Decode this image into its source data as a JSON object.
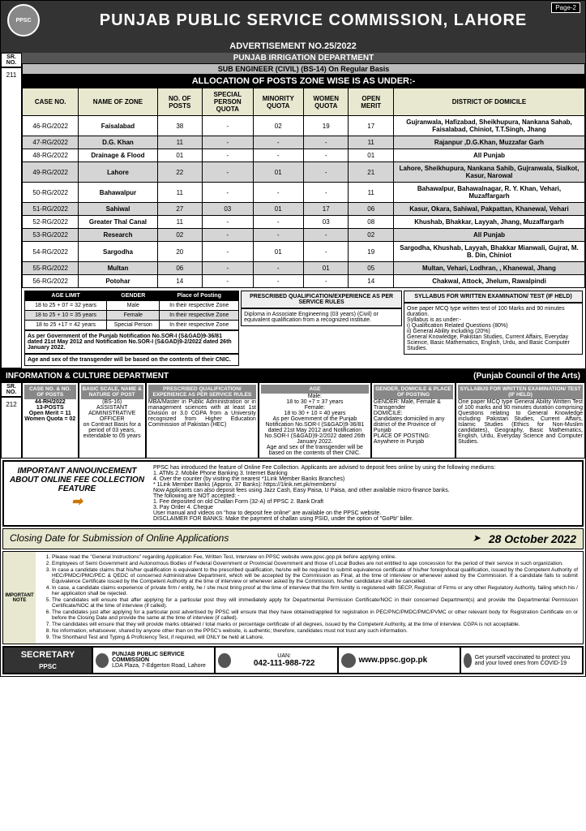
{
  "header": {
    "logo_text": "PPSC",
    "title": "PUNJAB PUBLIC SERVICE COMMISSION, LAHORE",
    "page_label": "Page-2"
  },
  "adv_no": "ADVERTISEMENT NO.25/2022",
  "dept1": "PUNJAB IRRIGATION DEPARTMENT",
  "sub1": "SUB ENGINEER (CIVIL) (BS-14) On Regular Basis",
  "alloc_title": "ALLOCATION OF POSTS ZONE WISE IS AS UNDER:-",
  "sr_label": "SR. NO.",
  "sr_211": "211",
  "cols": [
    "CASE NO.",
    "NAME OF ZONE",
    "NO. OF POSTS",
    "SPECIAL PERSON QUOTA",
    "MINORITY QUOTA",
    "WOMEN QUOTA",
    "OPEN MERIT",
    "DISTRICT OF DOMICILE"
  ],
  "rows": [
    {
      "alt": false,
      "c": [
        "46-RG/2022",
        "Faisalabad",
        "38",
        "-",
        "02",
        "19",
        "17",
        "Gujranwala, Hafizabad, Sheikhupura, Nankana Sahab, Faisalabad, Chiniot, T.T.Singh, Jhang"
      ]
    },
    {
      "alt": true,
      "c": [
        "47-RG/2022",
        "D.G. Khan",
        "11",
        "-",
        "-",
        "-",
        "11",
        "Rajanpur ,D.G.Khan, Muzzafar Garh"
      ]
    },
    {
      "alt": false,
      "c": [
        "48-RG/2022",
        "Drainage & Flood",
        "01",
        "-",
        "-",
        "-",
        "01",
        "All Punjab"
      ]
    },
    {
      "alt": true,
      "c": [
        "49-RG/2022",
        "Lahore",
        "22",
        "-",
        "01",
        "-",
        "21",
        "Lahore, Sheikhupura, Nankana Sahib, Gujranwala, Sialkot, Kasur, Narowal"
      ]
    },
    {
      "alt": false,
      "c": [
        "50-RG/2022",
        "Bahawalpur",
        "11",
        "-",
        "-",
        "-",
        "11",
        "Bahawalpur, Bahawalnagar, R. Y. Khan, Vehari, Muzaffargarh"
      ]
    },
    {
      "alt": true,
      "c": [
        "51-RG/2022",
        "Sahiwal",
        "27",
        "03",
        "01",
        "17",
        "06",
        "Kasur, Okara, Sahiwal, Pakpattan, Khanewal, Vehari"
      ]
    },
    {
      "alt": false,
      "c": [
        "52-RG/2022",
        "Greater Thal Canal",
        "11",
        "-",
        "-",
        "03",
        "08",
        "Khushab, Bhakkar, Layyah, Jhang, Muzaffargarh"
      ]
    },
    {
      "alt": true,
      "c": [
        "53-RG/2022",
        "Research",
        "02",
        "-",
        "-",
        "-",
        "02",
        "All Punjab"
      ]
    },
    {
      "alt": false,
      "c": [
        "54-RG/2022",
        "Sargodha",
        "20",
        "-",
        "01",
        "-",
        "19",
        "Sargodha, Khushab, Layyah, Bhakkar Mianwali, Gujrat, M. B. Din, Chiniot"
      ]
    },
    {
      "alt": true,
      "c": [
        "55-RG/2022",
        "Multan",
        "06",
        "-",
        "-",
        "01",
        "05",
        "Multan, Vehari, Lodhran, , Khanewal, Jhang"
      ]
    },
    {
      "alt": false,
      "c": [
        "56-RG/2022",
        "Potohar",
        "14",
        "-",
        "-",
        "-",
        "14",
        "Chakwal, Attock, Jhelum, Rawalpindi"
      ]
    }
  ],
  "age_limit_h": "AGE LIMIT",
  "gender_h": "GENDER",
  "place_h": "Place of Posting",
  "age_rows": [
    {
      "a": "18 to 25 + 07 = 32 years",
      "g": "Male",
      "p": "In their respective Zone"
    },
    {
      "a": "18 to 25 + 10 = 35 years",
      "g": "Female",
      "p": "In their respective Zone"
    },
    {
      "a": "18 to 25 +17 = 42 years",
      "g": "Special Person",
      "p": "In their respective Zone"
    }
  ],
  "age_note1": "As per Government of the Punjab Notification No.SOR-I (S&GAD)9-36/81 dated 21st May 2012 and Notification No.SOR-I (S&GAD)9-2/2022 dated 26th January 2022.",
  "age_note2": "Age and sex of the transgender will be based on the contents of their CNIC.",
  "qual_h": "PRESCRIBED QUALIFICATION/EXPERIENCE AS PER SERVICE RULES",
  "qual_text": "Diploma in Associate Engineering (03 years) (Civil) or equivalent qualification from a recognized institute.",
  "syllabus_h": "SYLLABUS FOR WRITTEN EXAMINATION/ TEST (IF HELD)",
  "syllabus_text": "One paper MCQ type written test of 100 Marks and 90 minutes duration.\nSyllabus is as under:-\ni) Qualification Related Questions (80%)\nii) General Ability including (20%)\nGeneral Knowledge, Pakistan Studies, Current Affairs, Everyday Science, Basic Mathematics, English, Urdu, and Basic Computer Studies.",
  "dept2_left": "INFORMATION & CULTURE DEPARTMENT",
  "dept2_right": "(Punjab Council of the Arts)",
  "sr_212": "212",
  "grid212_h": [
    "CASE NO. & NO. OF POSTS",
    "BASIC SCALE, NAME & NATURE OF POST",
    "PRESCRIBED QUALIFICATION/ EXPERIENCE AS PER SERVICE RULES",
    "AGE",
    "GENDER, DOMICILE & PLACE OF POSTING",
    "SYLLABUS FOR WRITTEN EXAMINATION/ TEST (IF HELD)"
  ],
  "grid212": {
    "c1": "44-RH/2022\n13-POSTS\nOpen Merit = 11\nWomen Quota = 02",
    "c2": "(BS-16)\nASSISTANT ADMINISTRATIVE OFFICER\non Contract Basis for a period of 03 years, extendable to 05 years",
    "c3": "MBA/Master in Public Administration or in management sciences with at least 1st Division or 3.0 CGPA from a University recognized from Higher Education Commission of Pakistan (HEC)",
    "c4": "Male:\n18 to 30 +7 = 37 years\nFemale:\n18 to 30 + 10 = 40 years\nAs per Government of the Punjab Notification No.SOR-I (S&GAD)9-36/81 dated 21st May 2012 and Notification No.SOR-I (S&GAD)9-2/2022 dated 26th January 2022.\nAge and sex of the transgender will be based on the contents of their CNIC.",
    "c5": "GENDER: Male, Female & Transgender\nDOMICILE:\nCandidates domiciled in any district of the Province of Punjab\nPLACE OF POSTING:\nAnywhere in Punjab",
    "c6": "One paper MCQ type General Ability Written Test of 100 marks and 90 minutes duration comprising Questions relating to General Knowledge including Pakistan Studies, Current Affairs, Islamic Studies (Ethics for Non-Muslim candidates), Geography, Basic Mathematics, English, Urdu, Everyday Science and Computer Studies."
  },
  "announce_title": "IMPORTANT ANNOUNCEMENT ABOUT ONLINE FEE COLLECTION FEATURE",
  "announce_body": "PPSC has introduced the feature of Online Fee Collection. Applicants are advised to deposit fees online by using the following mediums:\n1. ATMs   2. Mobile Phone Banking   3. Internet Banking\n4. Over the counter (by visiting the nearest *1Link Member Banks Branches)\n* 1Link Member Banks (Approx. 37 Banks): https://1link.net.pk/members/\nNow Applicants can also deposit fees using Jazz Cash, Easy Paisa, U Paisa, and other available micro-finance banks.\nThe following are NOT accepted: -\n1. Fee deposited on old Challan Form (32-A) of PPSC   2. Bank Draft\n3. Pay Order   4. Cheque\nUser manual and videos on \"how to deposit fee online\" are available on the PPSC website.\nDISCLAIMER FOR BANKS: Make the payment of challan using PSID, under the option of \"GoPb\" biller.",
  "closing_left": "Closing Date for Submission of Online Applications",
  "closing_right": "28 October 2022",
  "notes_label": "IMPORTANT NOTE",
  "notes": [
    "Please read the \"General Instructions\" regarding Application Fee, Written Test, Interview on PPSC website www.ppsc.gop.pk before applying online.",
    "Employees of Semi Government and Autonomous Bodies of Federal Government or Provincial Government and those of Local Bodies are not entitled to age concession for the period of their service in such organization.",
    "In case a candidate claims that his/her qualification is equivalent to the prescribed qualification, he/she will be required to submit equivalence certificate of his/her foreign/local qualification, issued by the Competent Authority of HEC/PMDC/PMC/PEC & QEDC of concerned Administrative Department, which will be accepted by the Commission as Final, at the time of interview or whenever asked by the Commission. If a candidate fails to submit Equivalence Certificate issued by the Competent Authority at the time of interview or whenever asked by the Commission, his/her candidature shall be cancelled.",
    "In case, a candidate claims experience of private firm / entity, he / she must bring proof at the time of interview that the firm /entity is registered with SECP, Registrar of Firms or any other Regulatory Authority, failing which his / her application shall be rejected.",
    "The candidates will ensure that after applying for a particular post they will immediately apply for Departmental Permission Certificate/NOC in their concerned Department(s) and provide the Departmental Permission Certificate/NOC at the time of interview (if called).",
    "The candidates just after applying for a particular post advertised by PPSC will ensure that they have obtained/applied for registration in PEC/PNC/PMDC/PMC/PVMC or other relevant body for Registration Certificate on or before the Closing Date and provide the same at the time of interview (if called).",
    "The candidates will ensure that they will provide marks obtained / total marks or percentage certificate of all degrees, issued by the Competent Authority, at the time of interview. CGPA is not acceptable.",
    "No information, whatsoever, shared by anyone other than on the PPSC's website, is authentic; therefore, candidates must not trust any such information.",
    "The Shorthand Test and Typing & Proficiency Test, if required, will ONLY be held at Lahore."
  ],
  "footer": {
    "secretary": "SECRETARY",
    "ppsc_sub": "PPSC",
    "addr_h": "PUNJAB PUBLIC SERVICE COMMISSION",
    "addr": "LDA Plaza, 7-Edgerton Road, Lahore",
    "uan_h": "UAN:",
    "uan": "042-111-988-722",
    "web": "www.ppsc.gop.pk",
    "vaccine": "Get yourself vaccinated to protect you and your loved ones from COVID-19"
  }
}
